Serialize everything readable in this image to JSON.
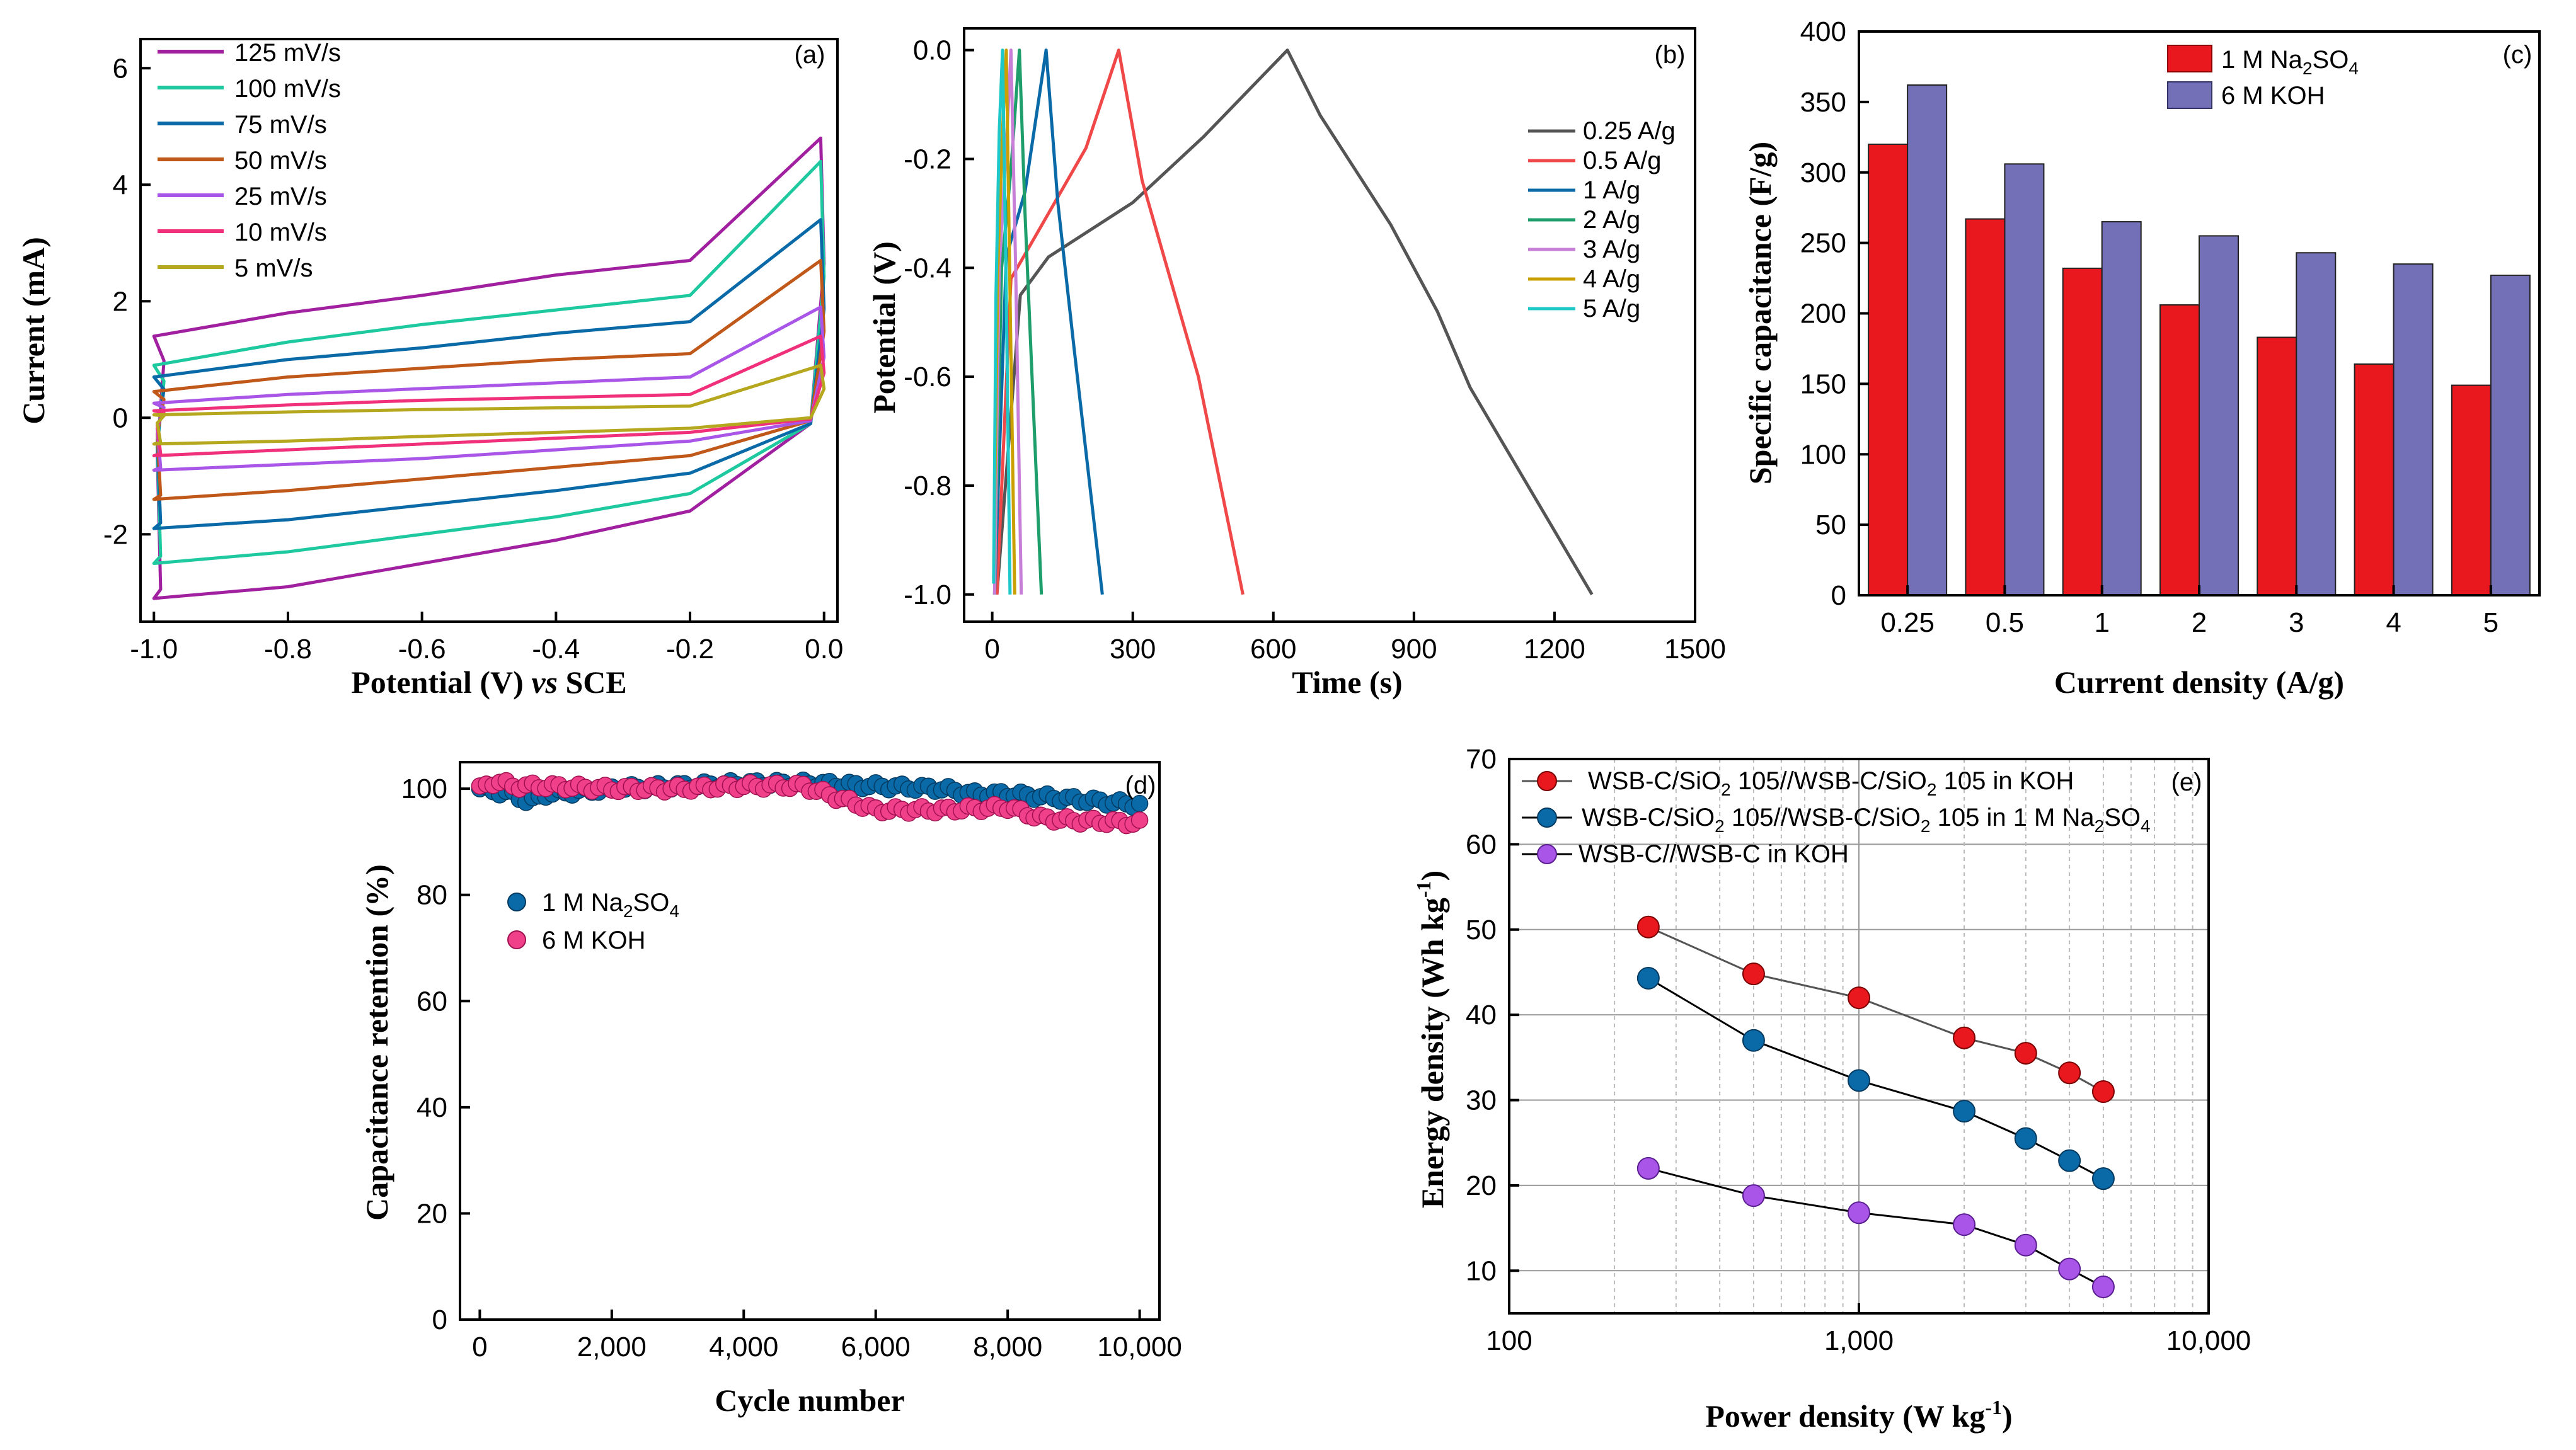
{
  "chart_data": [
    {
      "panel": "(a)",
      "type": "line",
      "xlabel": "Potential (V) vs SCE",
      "xlabel_main": "Potential (V) ",
      "xlabel_vs": "vs",
      "xlabel_ref": " SCE",
      "ylabel": "Current (mA)",
      "xlim": [
        -1.02,
        0.02
      ],
      "ylim": [
        -3.5,
        6.5
      ],
      "xticks": [
        -1.0,
        -0.8,
        -0.6,
        -0.4,
        -0.2,
        0.0
      ],
      "xtick_labels": [
        "-1.0",
        "-0.8",
        "-0.6",
        "-0.4",
        "-0.2",
        "0.0"
      ],
      "yticks": [
        -2,
        0,
        2,
        4,
        6
      ],
      "ytick_labels": [
        "-2",
        "0",
        "2",
        "4",
        "6"
      ],
      "series": [
        {
          "name": "125 mV/s",
          "color": "#a020a0",
          "upper": [
            1.4,
            1.8,
            2.1,
            2.45,
            2.7,
            4.8
          ],
          "lower": [
            -3.1,
            -2.9,
            -2.5,
            -2.1,
            -1.6,
            -0.1
          ]
        },
        {
          "name": "100 mV/s",
          "color": "#1fc9a0",
          "upper": [
            0.9,
            1.3,
            1.6,
            1.85,
            2.1,
            4.4
          ],
          "lower": [
            -2.5,
            -2.3,
            -2.0,
            -1.7,
            -1.3,
            -0.1
          ]
        },
        {
          "name": "75 mV/s",
          "color": "#0a6aa8",
          "upper": [
            0.7,
            1.0,
            1.2,
            1.45,
            1.65,
            3.4
          ],
          "lower": [
            -1.9,
            -1.75,
            -1.5,
            -1.25,
            -0.95,
            -0.1
          ]
        },
        {
          "name": "50 mV/s",
          "color": "#c0581a",
          "upper": [
            0.45,
            0.7,
            0.85,
            1.0,
            1.1,
            2.7
          ],
          "lower": [
            -1.4,
            -1.25,
            -1.05,
            -0.85,
            -0.65,
            -0.05
          ]
        },
        {
          "name": "25 mV/s",
          "color": "#a855e8",
          "upper": [
            0.25,
            0.4,
            0.5,
            0.6,
            0.7,
            1.9
          ],
          "lower": [
            -0.9,
            -0.8,
            -0.7,
            -0.55,
            -0.4,
            -0.05
          ]
        },
        {
          "name": "10 mV/s",
          "color": "#f0307a",
          "upper": [
            0.12,
            0.22,
            0.3,
            0.35,
            0.4,
            1.4
          ],
          "lower": [
            -0.65,
            -0.55,
            -0.45,
            -0.35,
            -0.25,
            -0.02
          ]
        },
        {
          "name": "5 mV/s",
          "color": "#b5a81e",
          "upper": [
            0.05,
            0.1,
            0.14,
            0.17,
            0.2,
            0.9
          ],
          "lower": [
            -0.45,
            -0.4,
            -0.32,
            -0.25,
            -0.18,
            0.0
          ]
        }
      ]
    },
    {
      "panel": "(b)",
      "type": "line",
      "xlabel": "Time (s)",
      "ylabel": "Potential (V)",
      "xlim": [
        -60,
        1500
      ],
      "ylim": [
        -1.05,
        0.04
      ],
      "xticks": [
        0,
        300,
        600,
        900,
        1200,
        1500
      ],
      "xtick_labels": [
        "0",
        "300",
        "600",
        "900",
        "1200",
        "1500"
      ],
      "yticks": [
        -1.0,
        -0.8,
        -0.6,
        -0.4,
        -0.2,
        0.0
      ],
      "ytick_labels": [
        "-1.0",
        "-0.8",
        "-0.6",
        "-0.4",
        "-0.2",
        "0.0"
      ],
      "series": [
        {
          "name": "0.25 A/g",
          "color": "#555555",
          "x": [
            10,
            60,
            120,
            300,
            450,
            630,
            700,
            850,
            950,
            1020,
            1280
          ],
          "y": [
            -1.0,
            -0.45,
            -0.38,
            -0.28,
            -0.16,
            0.0,
            -0.12,
            -0.32,
            -0.48,
            -0.62,
            -1.0
          ]
        },
        {
          "name": "0.5 A/g",
          "color": "#f04848",
          "x": [
            10,
            40,
            80,
            200,
            270,
            320,
            380,
            440,
            535
          ],
          "y": [
            -1.0,
            -0.42,
            -0.36,
            -0.18,
            0.0,
            -0.24,
            -0.42,
            -0.6,
            -1.0
          ]
        },
        {
          "name": "1 A/g",
          "color": "#0a6aa8",
          "x": [
            5,
            30,
            70,
            115,
            140,
            175,
            235
          ],
          "y": [
            -1.0,
            -0.38,
            -0.26,
            0.0,
            -0.28,
            -0.55,
            -1.0
          ]
        },
        {
          "name": "2 A/g",
          "color": "#1e9e6a",
          "x": [
            5,
            20,
            40,
            58,
            70,
            85,
            105
          ],
          "y": [
            -1.0,
            -0.4,
            -0.22,
            0.0,
            -0.3,
            -0.6,
            -1.0
          ]
        },
        {
          "name": "3 A/g",
          "color": "#c77ed6",
          "x": [
            5,
            15,
            30,
            40,
            50,
            62
          ],
          "y": [
            -1.0,
            -0.4,
            -0.18,
            0.0,
            -0.4,
            -1.0
          ]
        },
        {
          "name": "4 A/g",
          "color": "#c9a000",
          "x": [
            3,
            12,
            22,
            30,
            38,
            48
          ],
          "y": [
            -0.97,
            -0.4,
            -0.15,
            0.0,
            -0.45,
            -1.0
          ]
        },
        {
          "name": "5 A/g",
          "color": "#1ec8c8",
          "x": [
            3,
            8,
            15,
            22,
            30,
            38
          ],
          "y": [
            -0.98,
            -0.45,
            -0.15,
            0.0,
            -0.45,
            -1.0
          ]
        }
      ]
    },
    {
      "panel": "(c)",
      "type": "bar",
      "xlabel": "Current density (A/g)",
      "ylabel": "Specific capacitance (F/g)",
      "ylim": [
        0,
        400
      ],
      "yticks": [
        0,
        50,
        100,
        150,
        200,
        250,
        300,
        350,
        400
      ],
      "ytick_labels": [
        "0",
        "50",
        "100",
        "150",
        "200",
        "250",
        "300",
        "350",
        "400"
      ],
      "categories": [
        "0.25",
        "0.5",
        "1",
        "2",
        "3",
        "4",
        "5"
      ],
      "series": [
        {
          "name": "1 M Na2SO4",
          "name_prefix": "1 M Na",
          "sub1": "2",
          "mid": "SO",
          "sub2": "4",
          "color": "#e8181e",
          "values": [
            320,
            267,
            232,
            206,
            183,
            164,
            149
          ]
        },
        {
          "name": "6 M KOH",
          "color": "#7470b8",
          "values": [
            362,
            306,
            265,
            255,
            243,
            235,
            227
          ]
        }
      ]
    },
    {
      "panel": "(d)",
      "type": "scatter",
      "xlabel": "Cycle number",
      "ylabel": "Capacitance retention (%)",
      "xlim": [
        -300,
        10300
      ],
      "ylim": [
        0,
        105
      ],
      "xticks": [
        0,
        2000,
        4000,
        6000,
        8000,
        10000
      ],
      "xtick_labels": [
        "0",
        "2,000",
        "4,000",
        "6,000",
        "8,000",
        "10,000"
      ],
      "yticks": [
        0,
        20,
        40,
        60,
        80,
        100
      ],
      "ytick_labels": [
        "0",
        "20",
        "40",
        "60",
        "80",
        "100"
      ],
      "series": [
        {
          "name": "1 M Na2SO4",
          "name_prefix": "1 M Na",
          "sub1": "2",
          "mid": "SO",
          "sub2": "4",
          "color": "#0a6aa8",
          "x": [
            0,
            500,
            750,
            1000,
            1500,
            2000,
            3000,
            4000,
            5000,
            6000,
            7000,
            7500,
            8000,
            9000,
            10000
          ],
          "y": [
            100,
            99,
            97.5,
            99,
            99.5,
            100,
            100.5,
            101,
            101,
            100.5,
            100,
            99,
            99,
            98,
            97
          ]
        },
        {
          "name": "6 M KOH",
          "color": "#f0408a",
          "x": [
            0,
            250,
            500,
            1000,
            2000,
            3000,
            4000,
            4900,
            5500,
            6000,
            7000,
            8000,
            8500,
            9000,
            10000
          ],
          "y": [
            100,
            101.5,
            100.5,
            100.5,
            100,
            100,
            100.5,
            100.5,
            98,
            96,
            96,
            96.5,
            94.5,
            94,
            93.5
          ]
        }
      ]
    },
    {
      "panel": "(e)",
      "type": "line",
      "xscale": "log",
      "xlabel": "Power density (W kg-1)",
      "xlabel_main": "Power density (W kg",
      "xlabel_sup": "-1",
      "xlabel_end": ")",
      "ylabel": "Energy density (Wh kg-1)",
      "ylabel_main": "Energy density (Wh kg",
      "ylabel_sup": "-1",
      "ylabel_end": ")",
      "xlim": [
        100,
        10000
      ],
      "ylim": [
        5,
        70
      ],
      "xticks": [
        100,
        1000,
        10000
      ],
      "xtick_labels": [
        "100",
        "1,000",
        "10,000"
      ],
      "yticks": [
        10,
        20,
        30,
        40,
        50,
        60,
        70
      ],
      "ytick_labels": [
        "10",
        "20",
        "30",
        "40",
        "50",
        "60",
        "70"
      ],
      "series": [
        {
          "name": "WSB-C/SiO2 105//WSB-C/SiO2 105 in KOH",
          "leg_a": "WSB-C/SiO",
          "leg_s1": "2",
          "leg_b": " 105//WSB-C/SiO",
          "leg_s2": "2",
          "leg_c": " 105 in KOH",
          "color": "#e8181e",
          "x": [
            250,
            500,
            1000,
            2000,
            3000,
            4000,
            5000
          ],
          "y": [
            50.3,
            44.8,
            42.0,
            37.3,
            35.5,
            33.2,
            31.0
          ]
        },
        {
          "name": "WSB-C/SiO2 105//WSB-C/SiO2 105 in 1 M Na2SO4",
          "leg_a": "WSB-C/SiO",
          "leg_s1": "2",
          "leg_b": " 105//WSB-C/SiO",
          "leg_s2": "2",
          "leg_c": " 105 in 1 M Na",
          "leg_s3": "2",
          "leg_d": "SO",
          "leg_s4": "4",
          "color": "#0a6aa8",
          "x": [
            250,
            500,
            1000,
            2000,
            3000,
            4000,
            5000
          ],
          "y": [
            44.3,
            37.0,
            32.3,
            28.7,
            25.5,
            22.9,
            20.8
          ]
        },
        {
          "name": "WSB-C//WSB-C in KOH",
          "leg_a": "WSB-C//WSB-C in KOH",
          "color": "#a855e8",
          "x": [
            250,
            500,
            1000,
            2000,
            3000,
            4000,
            5000
          ],
          "y": [
            22.0,
            18.8,
            16.8,
            15.4,
            13.0,
            10.2,
            8.1
          ]
        }
      ]
    }
  ]
}
